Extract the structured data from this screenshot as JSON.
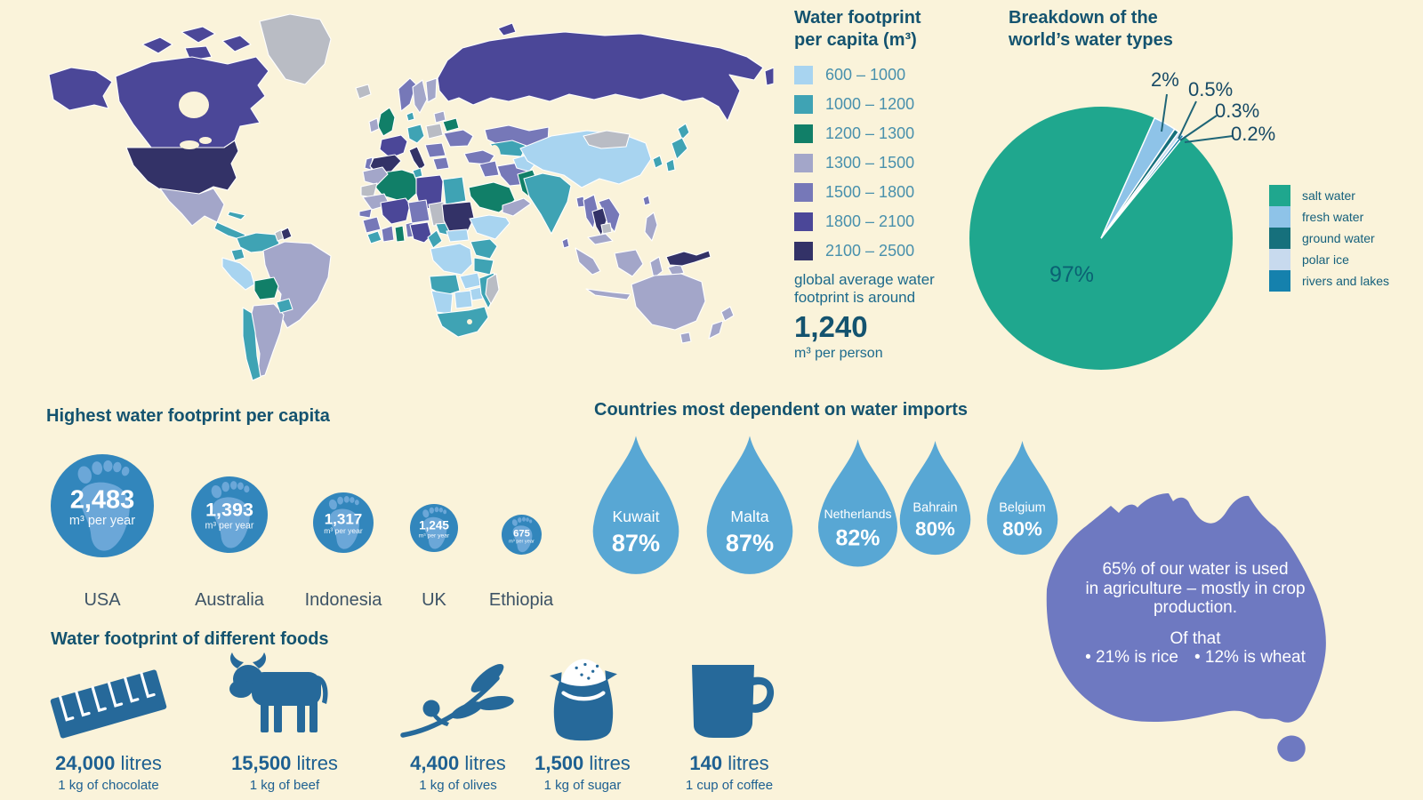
{
  "colors": {
    "background": "#FAF3DA",
    "title_text": "#14536F",
    "legend_text": "#4890AC",
    "note_text": "#1C6A8C",
    "dark_text": "#174A66",
    "pie_legend_text": "#15607C",
    "pie_label_97": "#0B6173",
    "pie_leader": "#1F6577",
    "country_label": "#3D5366",
    "map_no_data": "#B9BCC4",
    "foot_circle": "#3286BC",
    "foot_print": "#6FA9DA",
    "drop": "#58A7D4",
    "food_icon": "#26699A",
    "food_text": "#1E6091",
    "australia": "#6E79C1"
  },
  "map_legend": {
    "title_line1": "Water footprint",
    "title_line2": "per capita (m³)",
    "items": [
      {
        "label": "600 – 1000",
        "color": "#A8D4F0"
      },
      {
        "label": "1000 – 1200",
        "color": "#3FA3B4"
      },
      {
        "label": "1200 – 1300",
        "color": "#117F68"
      },
      {
        "label": "1300 – 1500",
        "color": "#A3A6C9"
      },
      {
        "label": "1500 – 1800",
        "color": "#7678B8"
      },
      {
        "label": "1800 – 2100",
        "color": "#4B4798"
      },
      {
        "label": "2100 – 2500",
        "color": "#333267"
      }
    ],
    "note_line1": "global average water",
    "note_line2": "footprint is around",
    "average_value": "1,240",
    "average_unit": "m³ per person"
  },
  "pie": {
    "title_line1": "Breakdown of the",
    "title_line2": "world’s water types",
    "slices": [
      {
        "label": "salt water",
        "value": "97%",
        "pct": 97,
        "color": "#1FA78E"
      },
      {
        "label": "fresh water",
        "value": "2%",
        "pct": 2,
        "color": "#8EC3E8"
      },
      {
        "label": "ground water",
        "value": "0.5%",
        "pct": 0.5,
        "color": "#16707C"
      },
      {
        "label": "polar ice",
        "value": "0.3%",
        "pct": 0.3,
        "color": "#C8DAEE"
      },
      {
        "label": "rivers and lakes",
        "value": "0.2%",
        "pct": 0.2,
        "color": "#1581AD"
      }
    ]
  },
  "footprints": {
    "title": "Highest water footprint per capita",
    "unit": "m³ per year",
    "items": [
      {
        "country": "USA",
        "value": "2,483"
      },
      {
        "country": "Australia",
        "value": "1,393"
      },
      {
        "country": "Indonesia",
        "value": "1,317"
      },
      {
        "country": "UK",
        "value": "1,245"
      },
      {
        "country": "Ethiopia",
        "value": "675"
      }
    ]
  },
  "imports": {
    "title": "Countries most dependent on water imports",
    "items": [
      {
        "country": "Kuwait",
        "pct": "87%"
      },
      {
        "country": "Malta",
        "pct": "87%"
      },
      {
        "country": "Netherlands",
        "pct": "82%"
      },
      {
        "country": "Bahrain",
        "pct": "80%"
      },
      {
        "country": "Belgium",
        "pct": "80%"
      }
    ]
  },
  "australia_fact": {
    "line1": "65% of our water is used",
    "line2": "in agriculture – mostly in crop",
    "line3": "production.",
    "line4": "Of that",
    "bullet1": "• 21% is rice",
    "bullet2": "• 12% is wheat"
  },
  "foods": {
    "title": "Water footprint of different foods",
    "items": [
      {
        "icon": "chocolate-bar-icon",
        "value": "24,000",
        "unit": "litres",
        "desc": "1 kg of chocolate"
      },
      {
        "icon": "cow-icon",
        "value": "15,500",
        "unit": "litres",
        "desc": "1 kg of beef"
      },
      {
        "icon": "olive-branch-icon",
        "value": "4,400",
        "unit": "litres",
        "desc": "1 kg of olives"
      },
      {
        "icon": "sugar-bag-icon",
        "value": "1,500",
        "unit": "litres",
        "desc": "1 kg of sugar"
      },
      {
        "icon": "coffee-mug-icon",
        "value": "140",
        "unit": "litres",
        "desc": "1 cup of coffee"
      }
    ]
  },
  "chart_data": [
    {
      "type": "pie",
      "title": "Breakdown of the world’s water types",
      "labels": [
        "salt water",
        "fresh water",
        "ground water",
        "polar ice",
        "rivers and lakes"
      ],
      "values": [
        97,
        2,
        0.5,
        0.3,
        0.2
      ],
      "unit": "%",
      "legend_position": "right"
    },
    {
      "type": "heatmap",
      "title": "Water footprint per capita (m³) — world choropleth",
      "bins": [
        "600 – 1000",
        "1000 – 1200",
        "1200 – 1300",
        "1300 – 1500",
        "1500 – 1800",
        "1800 – 2100",
        "2100 – 2500"
      ],
      "global_average": 1240,
      "global_average_unit": "m³ per person"
    },
    {
      "type": "bar",
      "title": "Highest water footprint per capita",
      "categories": [
        "USA",
        "Australia",
        "Indonesia",
        "UK",
        "Ethiopia"
      ],
      "values": [
        2483,
        1393,
        1317,
        1245,
        675
      ],
      "ylabel": "m³ per year"
    },
    {
      "type": "bar",
      "title": "Countries most dependent on water imports",
      "categories": [
        "Kuwait",
        "Malta",
        "Netherlands",
        "Bahrain",
        "Belgium"
      ],
      "values": [
        87,
        87,
        82,
        80,
        80
      ],
      "ylabel": "%"
    },
    {
      "type": "bar",
      "title": "Water footprint of different foods",
      "categories": [
        "1 kg of chocolate",
        "1 kg of beef",
        "1 kg of olives",
        "1 kg of sugar",
        "1 cup of coffee"
      ],
      "values": [
        24000,
        15500,
        4400,
        1500,
        140
      ],
      "ylabel": "litres"
    },
    {
      "type": "pie",
      "title": "Australian water use",
      "labels": [
        "agriculture",
        "of which rice",
        "of which wheat"
      ],
      "values": [
        65,
        21,
        12
      ],
      "unit": "%"
    }
  ]
}
